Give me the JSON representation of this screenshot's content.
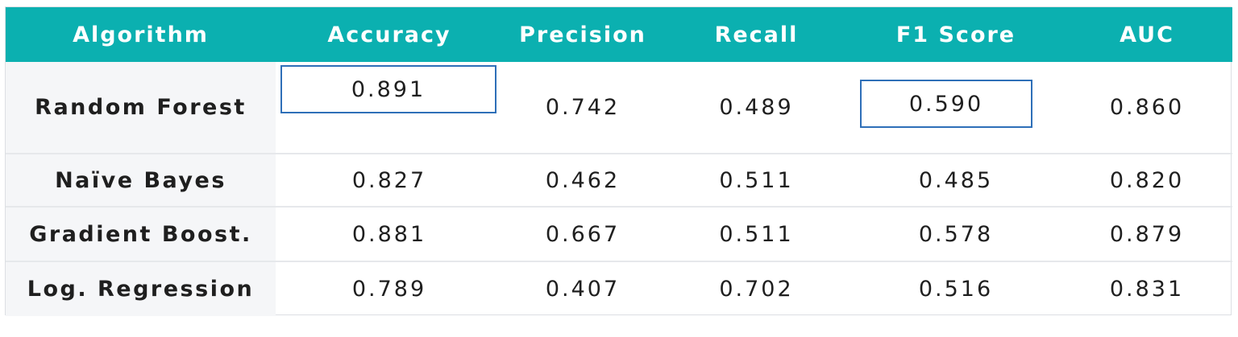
{
  "table": {
    "headers": [
      "Algorithm",
      "Accuracy",
      "Precision",
      "Recall",
      "F1 Score",
      "AUC"
    ],
    "rows": [
      {
        "algorithm": "Random Forest",
        "accuracy": "0.891",
        "precision": "0.742",
        "recall": "0.489",
        "f1": "0.590",
        "auc": "0.860"
      },
      {
        "algorithm": "Naïve Bayes",
        "accuracy": "0.827",
        "precision": "0.462",
        "recall": "0.511",
        "f1": "0.485",
        "auc": "0.820"
      },
      {
        "algorithm": "Gradient Boost.",
        "accuracy": "0.881",
        "precision": "0.667",
        "recall": "0.511",
        "f1": "0.578",
        "auc": "0.879"
      },
      {
        "algorithm": "Log. Regression",
        "accuracy": "0.789",
        "precision": "0.407",
        "recall": "0.702",
        "f1": "0.516",
        "auc": "0.831"
      }
    ],
    "highlighted_cells": [
      "Random Forest / Accuracy",
      "Random Forest / F1 Score"
    ],
    "colors": {
      "header_bg": "#0bb0b0",
      "header_text": "#ffffff",
      "highlight_border": "#2e6fb8",
      "algorithm_col_bg": "#f5f6f8"
    }
  }
}
